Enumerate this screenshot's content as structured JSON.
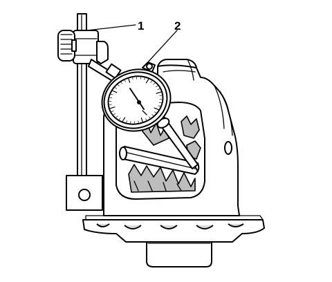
{
  "callouts": [
    {
      "id": "1",
      "label": "1"
    },
    {
      "id": "2",
      "label": "2"
    }
  ]
}
